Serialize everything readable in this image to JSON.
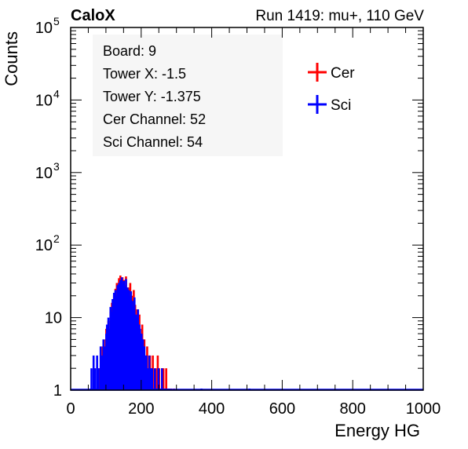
{
  "header": {
    "left_label": "CaloX",
    "right_label": "Run 1419: mu+, 110 GeV"
  },
  "info_box": {
    "lines": [
      "Board: 9",
      "Tower X: -1.5",
      "Tower Y: -1.375",
      "Cer Channel: 52",
      "Sci Channel: 54"
    ]
  },
  "chart_data": {
    "type": "histogram",
    "xlabel": "Energy HG",
    "ylabel": "Counts",
    "xlim": [
      0,
      1000
    ],
    "ylim": [
      1,
      100000
    ],
    "y_scale": "log",
    "grid": false,
    "legend_placement": "top-right",
    "x_ticks": [
      0,
      200,
      400,
      600,
      800,
      1000
    ],
    "x_tick_labels": [
      "0",
      "200",
      "400",
      "600",
      "800",
      "1000"
    ],
    "y_ticks": [
      1,
      10,
      100,
      1000,
      10000,
      100000
    ],
    "y_tick_labels": [
      {
        "text": "1"
      },
      {
        "text": "10"
      },
      {
        "text": "10",
        "exp": "2"
      },
      {
        "text": "10",
        "exp": "3"
      },
      {
        "text": "10",
        "exp": "4"
      },
      {
        "text": "10",
        "exp": "5"
      }
    ],
    "series": [
      {
        "name": "Cer",
        "color": "#ff0000",
        "bins": [
          [
            66,
            2
          ],
          [
            70,
            1
          ],
          [
            76,
            2
          ],
          [
            78,
            1
          ],
          [
            82,
            2
          ],
          [
            86,
            3
          ],
          [
            90,
            4
          ],
          [
            92,
            2
          ],
          [
            96,
            2
          ],
          [
            98,
            5
          ],
          [
            100,
            7
          ],
          [
            104,
            4
          ],
          [
            106,
            9
          ],
          [
            108,
            6
          ],
          [
            112,
            12
          ],
          [
            116,
            16
          ],
          [
            118,
            10
          ],
          [
            122,
            20
          ],
          [
            126,
            25
          ],
          [
            130,
            30
          ],
          [
            134,
            22
          ],
          [
            136,
            35
          ],
          [
            140,
            38
          ],
          [
            144,
            30
          ],
          [
            146,
            36
          ],
          [
            150,
            33
          ],
          [
            152,
            28
          ],
          [
            156,
            37
          ],
          [
            158,
            25
          ],
          [
            162,
            26
          ],
          [
            166,
            22
          ],
          [
            168,
            30
          ],
          [
            172,
            20
          ],
          [
            176,
            18
          ],
          [
            178,
            24
          ],
          [
            182,
            15
          ],
          [
            186,
            9
          ],
          [
            188,
            13
          ],
          [
            192,
            7
          ],
          [
            194,
            11
          ],
          [
            198,
            6
          ],
          [
            202,
            8
          ],
          [
            206,
            4
          ],
          [
            208,
            5
          ],
          [
            212,
            3
          ],
          [
            216,
            4
          ],
          [
            220,
            2
          ],
          [
            224,
            3
          ],
          [
            228,
            2
          ],
          [
            232,
            3
          ],
          [
            236,
            1
          ],
          [
            240,
            2
          ],
          [
            244,
            1
          ],
          [
            246,
            3
          ],
          [
            250,
            2
          ],
          [
            254,
            1
          ],
          [
            258,
            2
          ],
          [
            262,
            2
          ],
          [
            266,
            1
          ],
          [
            270,
            2
          ],
          [
            276,
            1
          ],
          [
            284,
            1
          ],
          [
            292,
            1
          ]
        ]
      },
      {
        "name": "Sci",
        "color": "#0000ff",
        "bins": [
          [
            56,
            1
          ],
          [
            58,
            2
          ],
          [
            62,
            1
          ],
          [
            64,
            3
          ],
          [
            68,
            2
          ],
          [
            72,
            1
          ],
          [
            74,
            3
          ],
          [
            78,
            2
          ],
          [
            84,
            4
          ],
          [
            88,
            3
          ],
          [
            92,
            5
          ],
          [
            96,
            4
          ],
          [
            100,
            6
          ],
          [
            102,
            8
          ],
          [
            106,
            10
          ],
          [
            108,
            7
          ],
          [
            112,
            14
          ],
          [
            116,
            12
          ],
          [
            118,
            18
          ],
          [
            122,
            22
          ],
          [
            126,
            24
          ],
          [
            128,
            20
          ],
          [
            132,
            28
          ],
          [
            136,
            30
          ],
          [
            140,
            33
          ],
          [
            144,
            36
          ],
          [
            146,
            29
          ],
          [
            150,
            32
          ],
          [
            154,
            27
          ],
          [
            156,
            34
          ],
          [
            160,
            26
          ],
          [
            164,
            24
          ],
          [
            168,
            20
          ],
          [
            170,
            23
          ],
          [
            174,
            17
          ],
          [
            178,
            14
          ],
          [
            180,
            19
          ],
          [
            184,
            11
          ],
          [
            188,
            10
          ],
          [
            190,
            13
          ],
          [
            194,
            8
          ],
          [
            196,
            7
          ],
          [
            200,
            6
          ],
          [
            204,
            5
          ],
          [
            208,
            4
          ],
          [
            210,
            3
          ],
          [
            214,
            3
          ],
          [
            218,
            2
          ],
          [
            222,
            3
          ],
          [
            226,
            2
          ],
          [
            230,
            2
          ],
          [
            234,
            1
          ],
          [
            238,
            2
          ],
          [
            242,
            1
          ],
          [
            248,
            2
          ],
          [
            252,
            1
          ],
          [
            258,
            2
          ],
          [
            264,
            1
          ],
          [
            270,
            1
          ],
          [
            278,
            1
          ],
          [
            370,
            1
          ],
          [
            506,
            1
          ]
        ]
      }
    ]
  }
}
